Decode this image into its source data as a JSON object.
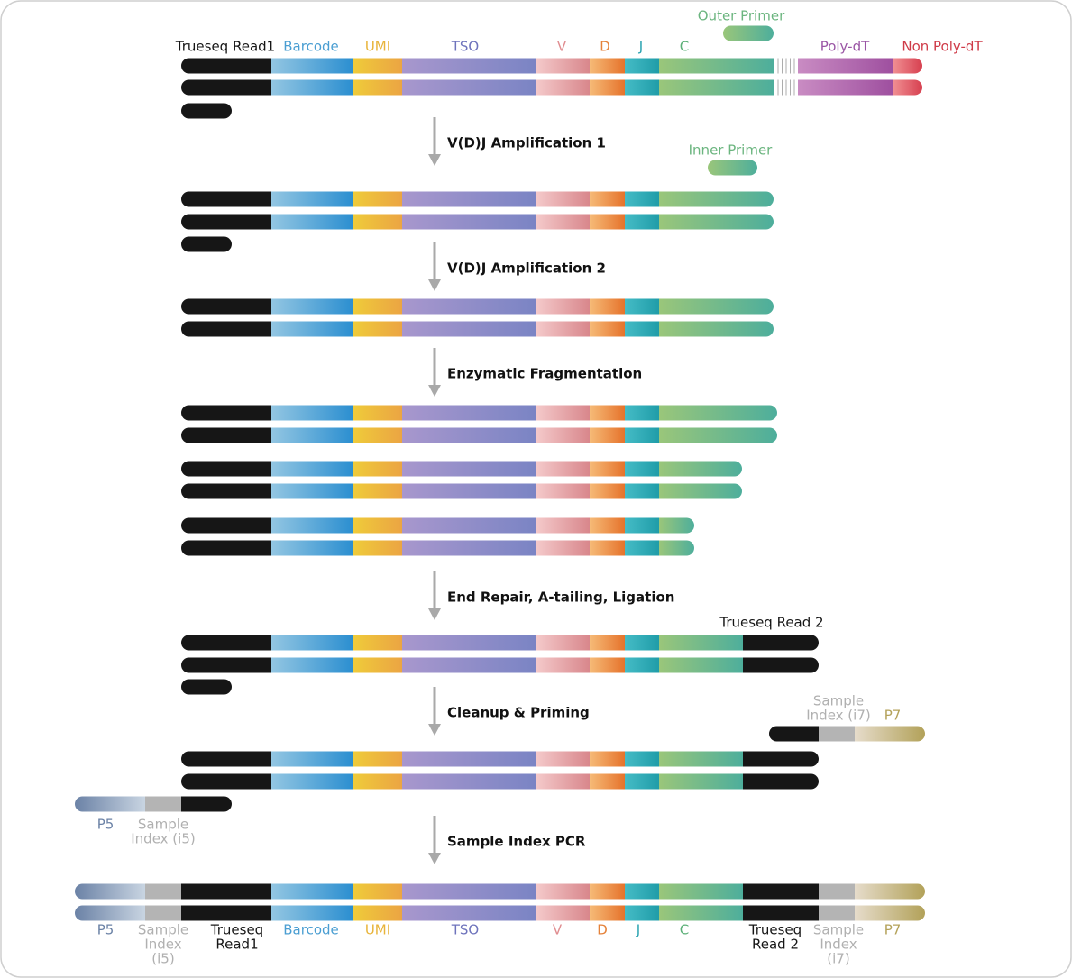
{
  "top_labels": [
    "Trueseq Read1",
    "Barcode",
    "UMI",
    "TSO",
    "V",
    "D",
    "J",
    "C",
    "Poly-dT",
    "Non Poly-dT"
  ],
  "primers": {
    "outer": "Outer Primer",
    "inner": "Inner Primer"
  },
  "steps": [
    "V(D)J Amplification 1",
    "V(D)J Amplification 2",
    "Enzymatic Fragmentation",
    "End Repair, A-tailing, Ligation",
    "Cleanup & Priming",
    "Sample Index PCR"
  ],
  "adapter_labels": {
    "read2": "Trueseq Read 2",
    "sample_index_i7": [
      "Sample",
      "Index (i7)"
    ],
    "p7": "P7",
    "p5": "P5",
    "sample_index_i5": [
      "Sample",
      "Index (i5)"
    ]
  },
  "bottom_labels": [
    [
      "P5"
    ],
    [
      "Sample",
      "Index",
      "(i5)"
    ],
    [
      "Trueseq",
      "Read1"
    ],
    [
      "Barcode"
    ],
    [
      "UMI"
    ],
    [
      "TSO"
    ],
    [
      "V"
    ],
    [
      "D"
    ],
    [
      "J"
    ],
    [
      "C"
    ],
    [
      "Trueseq",
      "Read 2"
    ],
    [
      "Sample",
      "Index",
      "(i7)"
    ],
    [
      "P7"
    ]
  ]
}
